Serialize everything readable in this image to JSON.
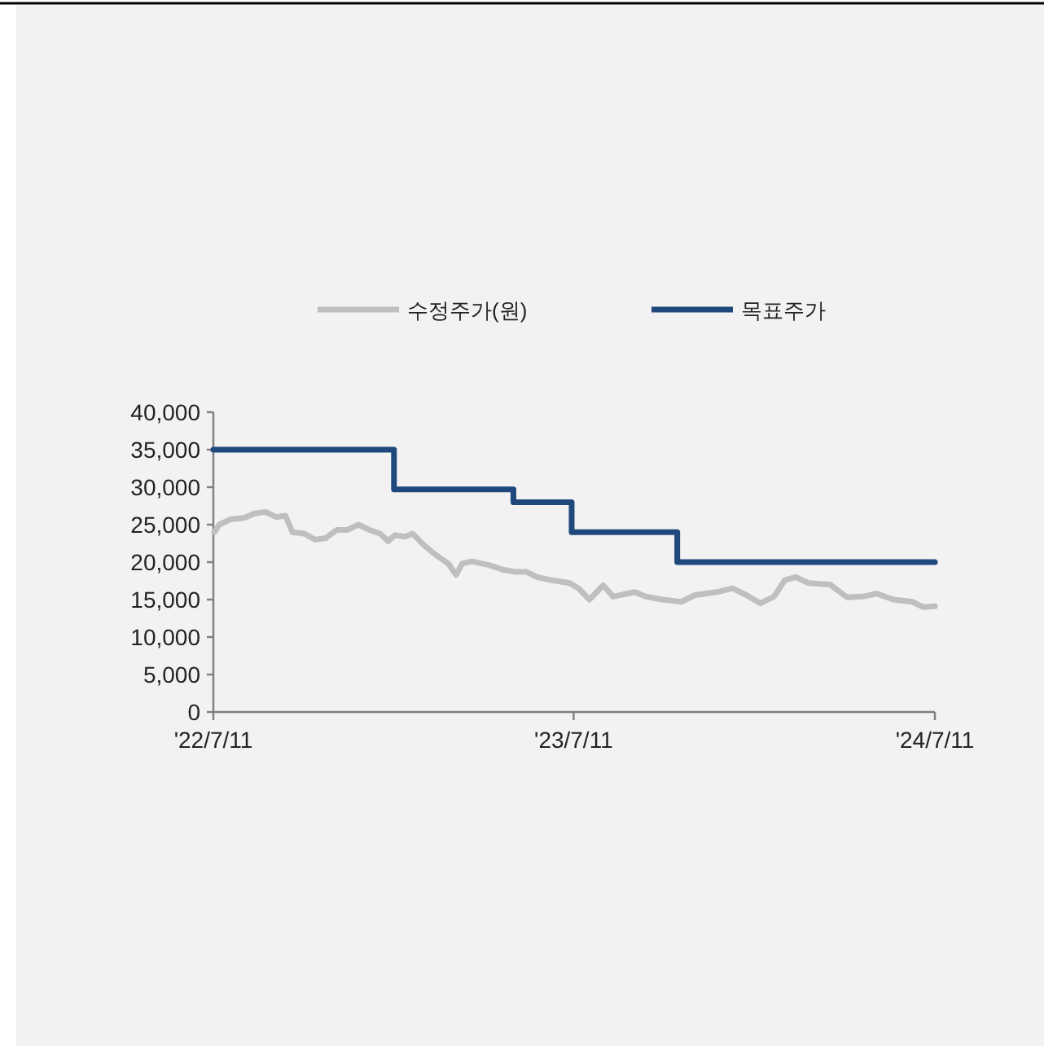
{
  "chart_data": {
    "type": "line",
    "legend": "top",
    "grid": false,
    "marker": "none",
    "xlim": [
      "2022-07-11",
      "2024-07-11"
    ],
    "xticks": [
      {
        "value": "2022-07-11",
        "label": "'22/7/11"
      },
      {
        "value": "2023-07-11",
        "label": "'23/7/11"
      },
      {
        "value": "2024-07-11",
        "label": "'24/7/11"
      }
    ],
    "ylim": [
      0,
      40000
    ],
    "yticks": [
      {
        "value": 0,
        "label": "0"
      },
      {
        "value": 5000,
        "label": "5,000"
      },
      {
        "value": 10000,
        "label": "10,000"
      },
      {
        "value": 15000,
        "label": "15,000"
      },
      {
        "value": 20000,
        "label": "20,000"
      },
      {
        "value": 25000,
        "label": "25,000"
      },
      {
        "value": 30000,
        "label": "30,000"
      },
      {
        "value": 35000,
        "label": "35,000"
      },
      {
        "value": 40000,
        "label": "40,000"
      }
    ],
    "series": [
      {
        "name": "수정주가(원)",
        "type": "line",
        "color": "#bfbfbf",
        "line_style": "solid",
        "x": [
          "2022-07-12",
          "2022-07-17",
          "2022-07-28",
          "2022-08-11",
          "2022-08-22",
          "2022-09-02",
          "2022-09-13",
          "2022-09-22",
          "2022-09-29",
          "2022-10-11",
          "2022-10-22",
          "2022-11-02",
          "2022-11-13",
          "2022-11-24",
          "2022-12-05",
          "2022-12-16",
          "2022-12-27",
          "2023-01-04",
          "2023-01-11",
          "2023-01-21",
          "2023-01-29",
          "2023-02-09",
          "2023-02-20",
          "2023-03-06",
          "2023-03-14",
          "2023-03-20",
          "2023-03-30",
          "2023-04-16",
          "2023-04-30",
          "2023-05-13",
          "2023-05-24",
          "2023-06-04",
          "2023-06-18",
          "2023-07-07",
          "2023-07-16",
          "2023-07-27",
          "2023-08-10",
          "2023-08-20",
          "2023-09-11",
          "2023-09-22",
          "2023-10-09",
          "2023-10-28",
          "2023-11-11",
          "2023-12-03",
          "2023-12-19",
          "2024-01-02",
          "2024-01-16",
          "2024-01-30",
          "2024-02-10",
          "2024-02-21",
          "2024-03-05",
          "2024-03-27",
          "2024-04-13",
          "2024-04-29",
          "2024-05-13",
          "2024-05-30",
          "2024-06-18",
          "2024-06-29",
          "2024-07-11"
        ],
        "values": [
          24000,
          25000,
          25700,
          25900,
          26500,
          26700,
          26000,
          26200,
          24000,
          23800,
          23000,
          23200,
          24300,
          24300,
          25000,
          24300,
          23800,
          22800,
          23600,
          23400,
          23800,
          22300,
          21100,
          19800,
          18300,
          19800,
          20100,
          19600,
          19000,
          18700,
          18700,
          18000,
          17600,
          17200,
          16500,
          15000,
          16900,
          15400,
          16000,
          15400,
          15000,
          14700,
          15600,
          16000,
          16500,
          15600,
          14500,
          15400,
          17600,
          18000,
          17200,
          17000,
          15300,
          15400,
          15800,
          15000,
          14700,
          14000,
          14100
        ]
      },
      {
        "name": "목표주가",
        "type": "step",
        "color": "#1f497d",
        "line_style": "solid",
        "x": [
          "2022-07-11",
          "2023-01-10",
          "2023-05-11",
          "2023-07-09",
          "2023-10-24",
          "2024-07-11"
        ],
        "values": [
          35000,
          29700,
          28000,
          24000,
          20000,
          20000
        ]
      }
    ]
  }
}
